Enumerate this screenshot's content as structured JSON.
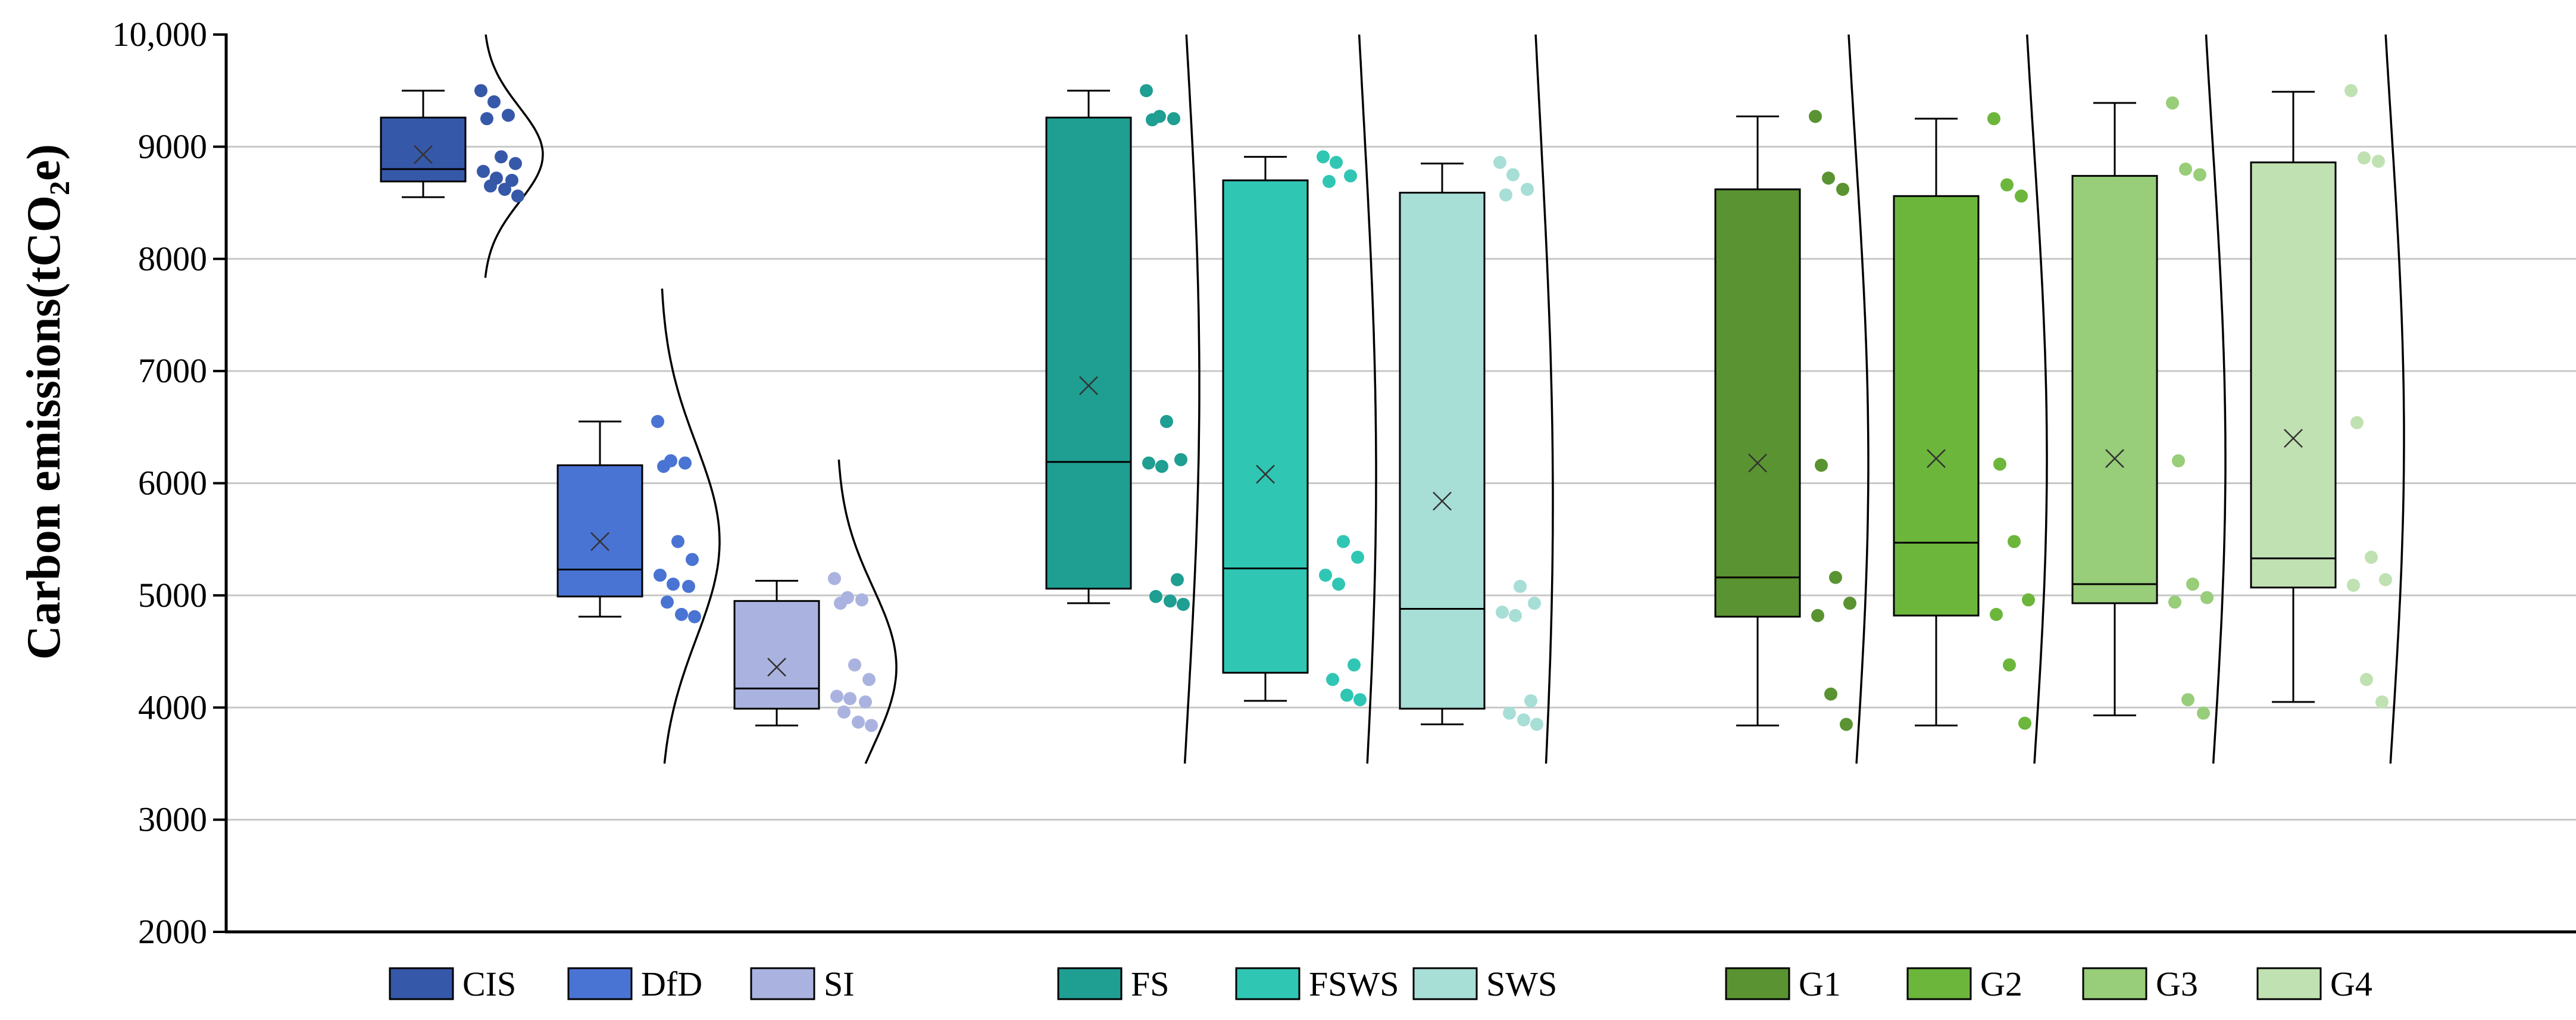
{
  "chart_data": {
    "type": "box",
    "title": "",
    "xlabel": "",
    "ylabel": "Carbon emissions(tCO₂e)",
    "ylim": [
      2000,
      10000
    ],
    "yticks": [
      "2000",
      "3000",
      "4000",
      "5000",
      "6000",
      "7000",
      "8000",
      "9000",
      "10,000"
    ],
    "grid": "horizontal",
    "legend_position": "bottom",
    "groups": [
      {
        "series": [
          {
            "name": "CIS",
            "color": "#3658a8",
            "min": 8550,
            "q1": 8690,
            "median": 8800,
            "q3": 9260,
            "max": 9500,
            "mean": 8930,
            "points": [
              9500,
              9400,
              9280,
              9250,
              8910,
              8850,
              8780,
              8720,
              8700,
              8650,
              8620,
              8560
            ]
          },
          {
            "name": "DfD",
            "color": "#4a74d3",
            "min": 4810,
            "q1": 4990,
            "median": 5230,
            "q3": 6160,
            "max": 6550,
            "mean": 5480,
            "points": [
              6550,
              6200,
              6180,
              6150,
              5480,
              5320,
              5180,
              5100,
              5080,
              4940,
              4830,
              4810
            ]
          },
          {
            "name": "SI",
            "color": "#aab3e0",
            "min": 3840,
            "q1": 3990,
            "median": 4170,
            "q3": 4950,
            "max": 5130,
            "mean": 4360,
            "points": [
              5150,
              4980,
              4960,
              4930,
              4380,
              4250,
              4100,
              4080,
              4050,
              3960,
              3870,
              3840
            ]
          }
        ]
      },
      {
        "series": [
          {
            "name": "FS",
            "color": "#1f9e92",
            "min": 4930,
            "q1": 5060,
            "median": 6190,
            "q3": 9260,
            "max": 9500,
            "mean": 6870,
            "points": [
              9500,
              9270,
              9250,
              9240,
              6550,
              6210,
              6180,
              6150,
              5140,
              4990,
              4950,
              4920
            ]
          },
          {
            "name": "FSWS",
            "color": "#30c6b4",
            "min": 4060,
            "q1": 4310,
            "median": 5240,
            "q3": 8700,
            "max": 8910,
            "mean": 6080,
            "points": [
              8910,
              8860,
              8740,
              8690,
              5480,
              5340,
              5180,
              5100,
              4380,
              4250,
              4110,
              4070
            ]
          },
          {
            "name": "SWS",
            "color": "#a7ded6",
            "min": 3850,
            "q1": 3990,
            "median": 4880,
            "q3": 8590,
            "max": 8850,
            "mean": 5840,
            "points": [
              8860,
              8750,
              8620,
              8570,
              5080,
              4930,
              4850,
              4820,
              4060,
              3950,
              3890,
              3850
            ]
          }
        ]
      },
      {
        "series": [
          {
            "name": "G1",
            "color": "#5a9331",
            "min": 3840,
            "q1": 4810,
            "median": 5160,
            "q3": 8620,
            "max": 9270,
            "mean": 6180,
            "points": [
              9270,
              8720,
              8620,
              6160,
              5160,
              4930,
              4820,
              4120,
              3850
            ]
          },
          {
            "name": "G2",
            "color": "#6cb63c",
            "min": 3840,
            "q1": 4820,
            "median": 5470,
            "q3": 8560,
            "max": 9250,
            "mean": 6220,
            "points": [
              9250,
              8660,
              8560,
              6170,
              5480,
              4960,
              4830,
              4380,
              3860
            ]
          },
          {
            "name": "G3",
            "color": "#98cd79",
            "min": 3930,
            "q1": 4930,
            "median": 5100,
            "q3": 8740,
            "max": 9390,
            "mean": 6220,
            "points": [
              9390,
              8800,
              8750,
              6200,
              5100,
              4980,
              4940,
              4070,
              3950
            ]
          },
          {
            "name": "G4",
            "color": "#c0e1b1",
            "min": 4050,
            "q1": 5070,
            "median": 5330,
            "q3": 8860,
            "max": 9490,
            "mean": 6400,
            "points": [
              9500,
              8900,
              8870,
              6540,
              5340,
              5140,
              5090,
              4250,
              4050
            ]
          }
        ]
      }
    ]
  }
}
